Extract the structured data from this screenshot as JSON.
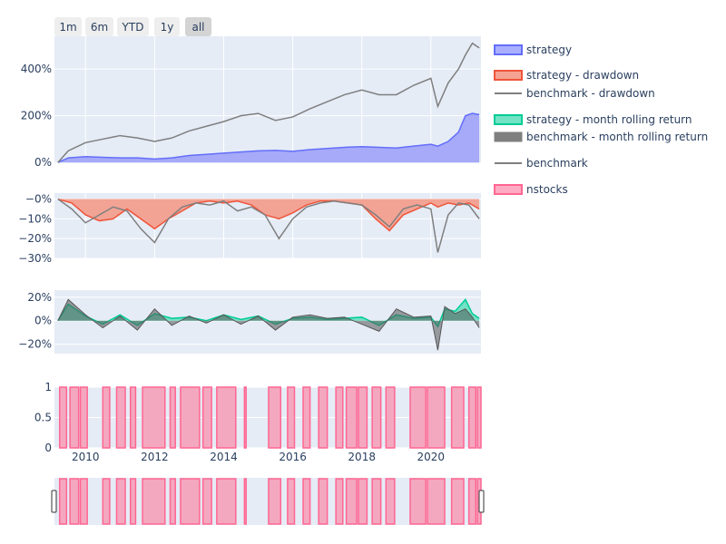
{
  "range_selector": {
    "buttons": [
      "1m",
      "6m",
      "YTD",
      "1y",
      "all"
    ],
    "active": "all"
  },
  "colors": {
    "plot_bg": "#e5ecf6",
    "grid": "#ffffff",
    "text": "#2a3f5f",
    "strategy_line": "#636efa",
    "strategy_fill": "#a6aaf8",
    "drawdown_line": "#ef553b",
    "drawdown_fill": "#f2a394",
    "benchmark": "#7f7f7f",
    "rolling_line": "#00cc96",
    "rolling_fill": "#66e0c0",
    "nstocks_line": "#ff6692",
    "nstocks_fill": "#f4a8c0"
  },
  "chart_data": [
    {
      "type": "area",
      "ylim": [
        -0.03,
        5.4
      ],
      "yticks": [
        0,
        2,
        4
      ],
      "ytick_labels": [
        "0%",
        "200%",
        "400%"
      ],
      "x": [
        2009.2,
        2009.5,
        2010,
        2010.5,
        2011,
        2011.5,
        2012,
        2012.5,
        2013,
        2013.5,
        2014,
        2014.5,
        2015,
        2015.5,
        2016,
        2016.5,
        2017,
        2017.5,
        2018,
        2018.5,
        2019,
        2019.5,
        2020,
        2020.2,
        2020.5,
        2020.8,
        2021,
        2021.2,
        2021.4
      ],
      "series": [
        {
          "name": "strategy",
          "values": [
            0,
            0.2,
            0.25,
            0.22,
            0.2,
            0.2,
            0.15,
            0.2,
            0.3,
            0.35,
            0.4,
            0.45,
            0.5,
            0.52,
            0.48,
            0.55,
            0.6,
            0.65,
            0.68,
            0.65,
            0.62,
            0.7,
            0.78,
            0.7,
            0.9,
            1.3,
            2.0,
            2.1,
            2.05
          ]
        },
        {
          "name": "benchmark",
          "values": [
            0,
            0.5,
            0.85,
            1.0,
            1.15,
            1.05,
            0.9,
            1.05,
            1.35,
            1.55,
            1.75,
            2.0,
            2.1,
            1.8,
            1.95,
            2.3,
            2.6,
            2.9,
            3.1,
            2.9,
            2.9,
            3.3,
            3.6,
            2.4,
            3.4,
            4.0,
            4.6,
            5.1,
            4.9
          ]
        }
      ]
    },
    {
      "type": "area",
      "ylim": [
        -0.3,
        0.03
      ],
      "yticks": [
        0,
        -0.1,
        -0.2,
        -0.3
      ],
      "ytick_labels": [
        "−0%",
        "−10%",
        "−20%",
        "−30%"
      ],
      "x": [
        2009.2,
        2009.6,
        2010,
        2010.4,
        2010.8,
        2011.2,
        2011.6,
        2012,
        2012.4,
        2012.8,
        2013.2,
        2013.6,
        2014,
        2014.4,
        2014.8,
        2015.2,
        2015.6,
        2016,
        2016.4,
        2016.8,
        2017.2,
        2017.6,
        2018,
        2018.4,
        2018.8,
        2019.2,
        2019.6,
        2020,
        2020.2,
        2020.5,
        2020.8,
        2021.1,
        2021.4
      ],
      "series": [
        {
          "name": "strategy - drawdown",
          "values": [
            0,
            -0.02,
            -0.08,
            -0.11,
            -0.1,
            -0.05,
            -0.1,
            -0.15,
            -0.1,
            -0.06,
            -0.02,
            -0.01,
            -0.02,
            -0.01,
            -0.03,
            -0.08,
            -0.1,
            -0.07,
            -0.03,
            -0.01,
            -0.01,
            -0.02,
            -0.03,
            -0.1,
            -0.16,
            -0.08,
            -0.05,
            -0.02,
            -0.04,
            -0.02,
            -0.03,
            -0.02,
            -0.05
          ]
        },
        {
          "name": "benchmark - drawdown",
          "values": [
            0,
            -0.05,
            -0.12,
            -0.08,
            -0.04,
            -0.06,
            -0.15,
            -0.22,
            -0.1,
            -0.04,
            -0.02,
            -0.03,
            -0.01,
            -0.06,
            -0.04,
            -0.08,
            -0.2,
            -0.1,
            -0.04,
            -0.02,
            -0.01,
            -0.02,
            -0.03,
            -0.08,
            -0.14,
            -0.05,
            -0.03,
            -0.05,
            -0.27,
            -0.08,
            -0.02,
            -0.03,
            -0.1
          ]
        }
      ]
    },
    {
      "type": "area",
      "ylim": [
        -0.28,
        0.26
      ],
      "yticks": [
        0.2,
        0,
        -0.2
      ],
      "ytick_labels": [
        "20%",
        "0%",
        "−20%"
      ],
      "x": [
        2009.2,
        2009.5,
        2010,
        2010.5,
        2011,
        2011.5,
        2012,
        2012.5,
        2013,
        2013.5,
        2014,
        2014.5,
        2015,
        2015.5,
        2016,
        2016.5,
        2017,
        2017.5,
        2018,
        2018.5,
        2019,
        2019.5,
        2020,
        2020.2,
        2020.4,
        2020.7,
        2021,
        2021.2,
        2021.4
      ],
      "series": [
        {
          "name": "strategy - month rolling return",
          "values": [
            0,
            0.14,
            0.04,
            -0.03,
            0.05,
            -0.04,
            0.06,
            0.02,
            0.03,
            0.0,
            0.05,
            0.01,
            0.04,
            -0.03,
            0.02,
            0.03,
            0.01,
            0.02,
            0.03,
            -0.04,
            0.05,
            0.02,
            0.03,
            -0.05,
            0.1,
            0.08,
            0.18,
            0.06,
            0.02
          ]
        },
        {
          "name": "benchmark - month rolling return",
          "values": [
            0,
            0.18,
            0.05,
            -0.06,
            0.04,
            -0.08,
            0.1,
            -0.04,
            0.04,
            -0.02,
            0.05,
            -0.03,
            0.04,
            -0.08,
            0.03,
            0.05,
            0.02,
            0.03,
            -0.03,
            -0.09,
            0.1,
            0.03,
            0.04,
            -0.25,
            0.12,
            0.06,
            0.1,
            0.03,
            -0.06
          ]
        }
      ]
    },
    {
      "type": "area",
      "ylim": [
        0,
        1
      ],
      "yticks": [
        1,
        0.5,
        0
      ],
      "ytick_labels": [
        "1",
        "0.5",
        "0"
      ],
      "xticks": [
        2010,
        2012,
        2014,
        2016,
        2018,
        2020
      ],
      "xtick_labels": [
        "2010",
        "2012",
        "2014",
        "2016",
        "2018",
        "2020"
      ],
      "series": [
        {
          "name": "nstocks",
          "on_intervals": [
            [
              2009.25,
              2009.45
            ],
            [
              2009.55,
              2009.8
            ],
            [
              2009.85,
              2010.05
            ],
            [
              2010.5,
              2010.7
            ],
            [
              2010.9,
              2011.15
            ],
            [
              2011.3,
              2011.45
            ],
            [
              2011.65,
              2012.3
            ],
            [
              2012.45,
              2012.6
            ],
            [
              2012.75,
              2013.3
            ],
            [
              2013.4,
              2013.65
            ],
            [
              2013.8,
              2014.35
            ],
            [
              2014.6,
              2014.65
            ],
            [
              2015.3,
              2015.65
            ],
            [
              2015.85,
              2016.05
            ],
            [
              2016.3,
              2016.5
            ],
            [
              2016.75,
              2017.0
            ],
            [
              2017.25,
              2017.45
            ],
            [
              2017.55,
              2017.85
            ],
            [
              2017.9,
              2018.15
            ],
            [
              2018.3,
              2018.55
            ],
            [
              2018.7,
              2018.95
            ],
            [
              2019.4,
              2019.85
            ],
            [
              2019.9,
              2020.4
            ],
            [
              2020.6,
              2020.95
            ],
            [
              2021.1,
              2021.3
            ],
            [
              2021.35,
              2021.45
            ]
          ]
        }
      ]
    }
  ],
  "x_range": [
    2009.1,
    2021.45
  ],
  "legend": [
    {
      "name": "strategy",
      "swatch": "area",
      "color": "#636efa"
    },
    {
      "name": "strategy - drawdown",
      "swatch": "area",
      "color": "#ef553b"
    },
    {
      "name": "benchmark - drawdown",
      "swatch": "line",
      "color": "#7f7f7f"
    },
    {
      "name": "strategy - month rolling return",
      "swatch": "area",
      "color": "#00cc96"
    },
    {
      "name": "benchmark - month rolling return",
      "swatch": "thick",
      "color": "#7f7f7f"
    },
    {
      "name": "benchmark",
      "swatch": "line",
      "color": "#7f7f7f"
    },
    {
      "name": "nstocks",
      "swatch": "area",
      "color": "#ff6692"
    }
  ]
}
